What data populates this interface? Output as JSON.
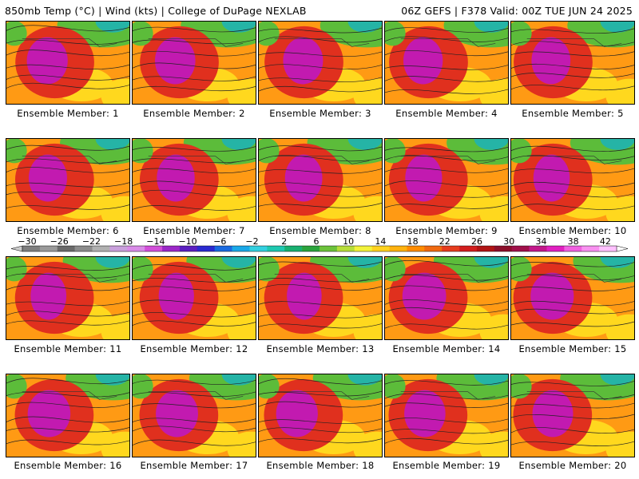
{
  "header": {
    "left": "850mb Temp (°C) | Wind (kts) | College of DuPage NEXLAB",
    "right": "06Z GEFS | F378 Valid: 00Z TUE JUN 24 2025"
  },
  "label_prefix": "Ensemble Member:",
  "members": [
    {
      "label": "Ensemble Member: 1"
    },
    {
      "label": "Ensemble Member: 2"
    },
    {
      "label": "Ensemble Member: 3"
    },
    {
      "label": "Ensemble Member: 4"
    },
    {
      "label": "Ensemble Member: 5"
    },
    {
      "label": "Ensemble Member: 6"
    },
    {
      "label": "Ensemble Member: 7"
    },
    {
      "label": "Ensemble Member: 8"
    },
    {
      "label": "Ensemble Member: 9"
    },
    {
      "label": "Ensemble Member: 10"
    },
    {
      "label": "Ensemble Member: 11"
    },
    {
      "label": "Ensemble Member: 12"
    },
    {
      "label": "Ensemble Member: 13"
    },
    {
      "label": "Ensemble Member: 14"
    },
    {
      "label": "Ensemble Member: 15"
    },
    {
      "label": "Ensemble Member: 16"
    },
    {
      "label": "Ensemble Member: 17"
    },
    {
      "label": "Ensemble Member: 18"
    },
    {
      "label": "Ensemble Member: 19"
    },
    {
      "label": "Ensemble Member: 20"
    }
  ],
  "colorbar": {
    "labels": [
      "−30",
      "−26",
      "−22",
      "−18",
      "−14",
      "−10",
      "−6",
      "−2",
      "2",
      "6",
      "10",
      "14",
      "18",
      "22",
      "26",
      "30",
      "34",
      "38",
      "42"
    ],
    "colors": [
      "#7f7f7f",
      "#9a9a9a",
      "#6a6a6a",
      "#8c8c8c",
      "#b0b0b0",
      "#c9a0dc",
      "#d98be8",
      "#d24fd9",
      "#9b28c8",
      "#5b1fc0",
      "#2a2ad0",
      "#1a6ae0",
      "#1aa8e8",
      "#33d0e0",
      "#1ec8b0",
      "#19b070",
      "#2aa43c",
      "#6cc23a",
      "#b7dd3a",
      "#f2f23a",
      "#ffd21e",
      "#ffb20e",
      "#ff8c00",
      "#f06a10",
      "#e63c1e",
      "#d21e1e",
      "#b01414",
      "#8c0f2a",
      "#a0104a",
      "#c2188a",
      "#e020c0",
      "#f060e0",
      "#f890f0",
      "#ffc0ff"
    ]
  },
  "colors": {
    "warm_core": "#c21ab0",
    "hot": "#e0301e",
    "orange": "#ff9a14",
    "yellow": "#ffd81e",
    "green": "#5cbc3a",
    "cool": "#25b4a6"
  }
}
